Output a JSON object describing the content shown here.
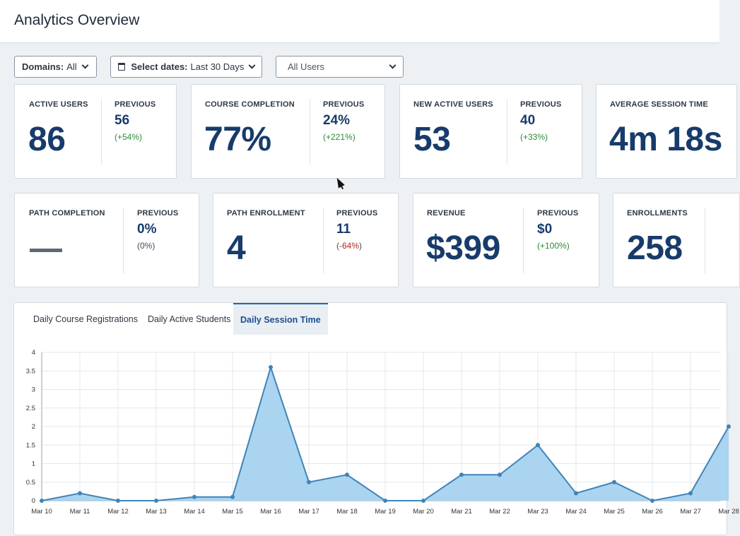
{
  "header": {
    "title": "Analytics Overview"
  },
  "filters": {
    "domains_label": "Domains:",
    "domains_value": "All",
    "dates_label": "Select dates:",
    "dates_value": "Last 30 Days",
    "users_value": "All Users"
  },
  "cards": [
    {
      "label": "ACTIVE USERS",
      "value": "86",
      "prev_label": "PREVIOUS",
      "prev_value": "56",
      "change": "(+54%)"
    },
    {
      "label": "COURSE COMPLETION",
      "value": "77%",
      "prev_label": "PREVIOUS",
      "prev_value": "24%",
      "change": "(+221%)"
    },
    {
      "label": "NEW ACTIVE USERS",
      "value": "53",
      "prev_label": "PREVIOUS",
      "prev_value": "40",
      "change": "(+33%)"
    },
    {
      "label": "AVERAGE SESSION TIME",
      "value": "4m 18s"
    },
    {
      "label": "PATH COMPLETION",
      "value": "—",
      "prev_label": "PREVIOUS",
      "prev_value": "0%",
      "change": "(0%)"
    },
    {
      "label": "PATH ENROLLMENT",
      "value": "4",
      "prev_label": "PREVIOUS",
      "prev_value": "11",
      "change_pre": "(",
      "change_neg": "-64%",
      "change_post": ")"
    },
    {
      "label": "REVENUE",
      "value": "$399",
      "prev_label": "PREVIOUS",
      "prev_value": "$0",
      "change": "(+100%)"
    },
    {
      "label": "ENROLLMENTS",
      "value": "258"
    }
  ],
  "tabs": [
    "Daily Course Registrations",
    "Daily Active Students",
    "Daily Session Time"
  ],
  "colors": {
    "accent": "#2567b0",
    "value": "#173b6b",
    "area_fill": "#a6d2ef",
    "line": "#3f84b8"
  },
  "chart_data": {
    "type": "area",
    "title": "Daily Session Time",
    "categories": [
      "Mar 10",
      "Mar 11",
      "Mar 12",
      "Mar 13",
      "Mar 14",
      "Mar 15",
      "Mar 16",
      "Mar 17",
      "Mar 18",
      "Mar 19",
      "Mar 20",
      "Mar 21",
      "Mar 22",
      "Mar 23",
      "Mar 24",
      "Mar 25",
      "Mar 26",
      "Mar 27",
      "Mar 28"
    ],
    "values": [
      0,
      0.2,
      0,
      0,
      0.1,
      0.1,
      3.6,
      0.5,
      0.7,
      0,
      0,
      0.7,
      0.7,
      1.5,
      0.2,
      0.5,
      0,
      0.2,
      2.0
    ],
    "yticks": [
      "0",
      "0.5",
      "1",
      "1.5",
      "2",
      "2.5",
      "3",
      "3.5",
      "4"
    ],
    "ylim": [
      0,
      4
    ],
    "xlabel": "",
    "ylabel": ""
  }
}
